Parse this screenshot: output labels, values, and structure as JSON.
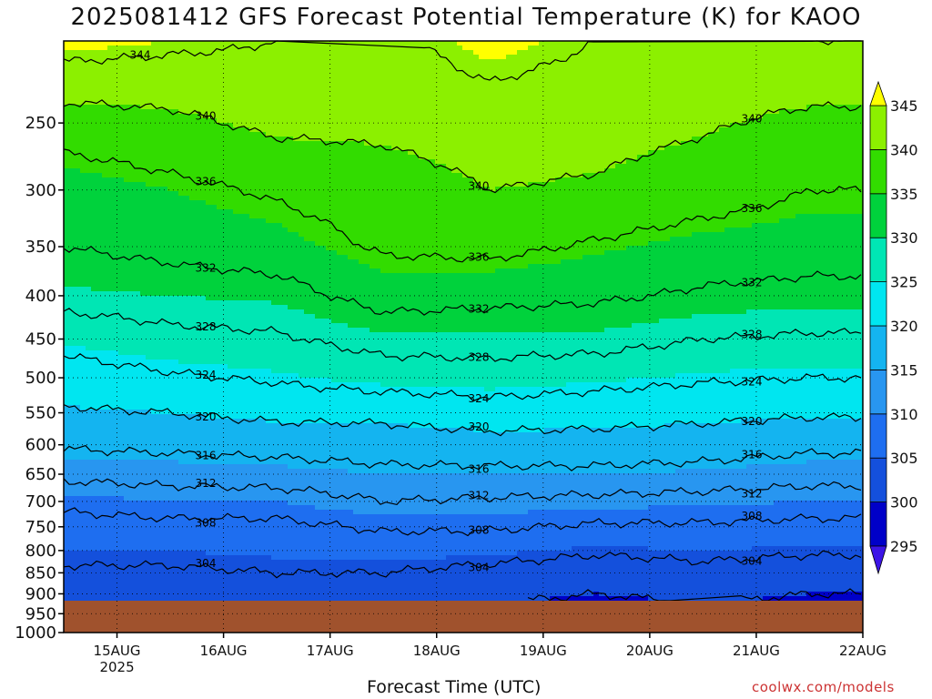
{
  "title": "2025081412 GFS Forecast Potential Temperature (K) for KAOO",
  "xlabel": "Forecast Time (UTC)",
  "credit": "coolwx.com/models",
  "chart_data": {
    "type": "heatmap",
    "title": "2025081412 GFS Forecast Potential Temperature (K) for KAOO",
    "xlabel": "Forecast Time (UTC)",
    "ylabel": "",
    "y_scale": "log",
    "y_reversed": true,
    "ylim": [
      1000,
      200
    ],
    "xlim": [
      "2025-08-14 12Z",
      "2025-08-22 00Z"
    ],
    "x_ticks": [
      "15AUG",
      "16AUG",
      "17AUG",
      "18AUG",
      "19AUG",
      "20AUG",
      "21AUG",
      "22AUG"
    ],
    "x_tick_year": "2025",
    "y_ticks": [
      250,
      300,
      350,
      400,
      450,
      500,
      550,
      600,
      650,
      700,
      750,
      800,
      850,
      900,
      950,
      1000
    ],
    "grid": true,
    "colorbar": {
      "ticks": [
        295,
        300,
        305,
        310,
        315,
        320,
        325,
        330,
        335,
        340,
        345
      ],
      "colors": [
        "#3c14e6",
        "#0000c8",
        "#1450dc",
        "#1e6ef0",
        "#2896f0",
        "#14b4f0",
        "#00e6f0",
        "#00e6b4",
        "#00d23c",
        "#32dc00",
        "#8cf000",
        "#c8f000",
        "#ffff00"
      ],
      "extend": "both"
    },
    "contour_interval": 4,
    "contour_labels": [
      304,
      308,
      312,
      316,
      320,
      324,
      328,
      332,
      336,
      340,
      344
    ],
    "x_days": [
      0,
      1,
      2,
      3,
      4,
      5,
      6,
      7,
      7.5
    ],
    "levels": [
      1000,
      950,
      900,
      850,
      800,
      750,
      700,
      650,
      600,
      550,
      500,
      450,
      400,
      350,
      300,
      250,
      200
    ],
    "series": [
      {
        "day": 0,
        "theta": [
          299,
          300,
          302,
          303.5,
          305,
          306.5,
          309,
          313,
          316.5,
          319.5,
          322,
          325.5,
          329.5,
          332,
          333.5,
          338,
          346
        ]
      },
      {
        "day": 1,
        "theta": [
          299,
          301,
          302,
          303.5,
          305,
          307,
          310,
          313.5,
          317,
          320,
          323.5,
          327,
          330,
          333,
          335,
          339,
          345
        ]
      },
      {
        "day": 2,
        "theta": [
          300,
          301,
          303,
          304,
          305.5,
          307,
          310,
          314,
          317.5,
          321,
          324.5,
          327.5,
          330.5,
          334,
          336.5,
          341,
          344
        ]
      },
      {
        "day": 3,
        "theta": [
          298,
          300,
          302,
          304,
          306,
          308.5,
          312,
          315,
          318,
          321,
          326,
          329.5,
          333.5,
          336.5,
          338,
          341,
          343
        ]
      },
      {
        "day": 4,
        "theta": [
          297,
          299,
          301,
          303,
          305.5,
          308.5,
          311.5,
          315,
          318.5,
          322,
          326.5,
          329.5,
          333,
          337,
          340,
          342,
          346
        ]
      },
      {
        "day": 5,
        "theta": [
          296,
          298,
          300,
          302,
          304.5,
          307.5,
          311,
          315,
          318.5,
          321.5,
          325.5,
          329.5,
          332.5,
          335.5,
          339.5,
          341.5,
          344
        ]
      },
      {
        "day": 6,
        "theta": [
          297,
          299,
          301,
          303,
          305,
          307.5,
          310.5,
          314.5,
          318,
          321,
          324.5,
          328,
          331.5,
          334,
          338,
          340.5,
          343
        ]
      },
      {
        "day": 7,
        "theta": [
          296,
          298,
          300,
          302,
          304.5,
          307,
          310,
          313.5,
          317,
          320.5,
          324,
          327.5,
          331,
          333.5,
          336,
          339,
          344
        ]
      },
      {
        "day": 7.5,
        "theta": [
          296,
          298,
          300,
          302,
          304.5,
          307,
          310,
          313.5,
          317,
          320.5,
          324,
          327.5,
          331,
          333.5,
          336,
          339,
          344
        ]
      }
    ]
  }
}
